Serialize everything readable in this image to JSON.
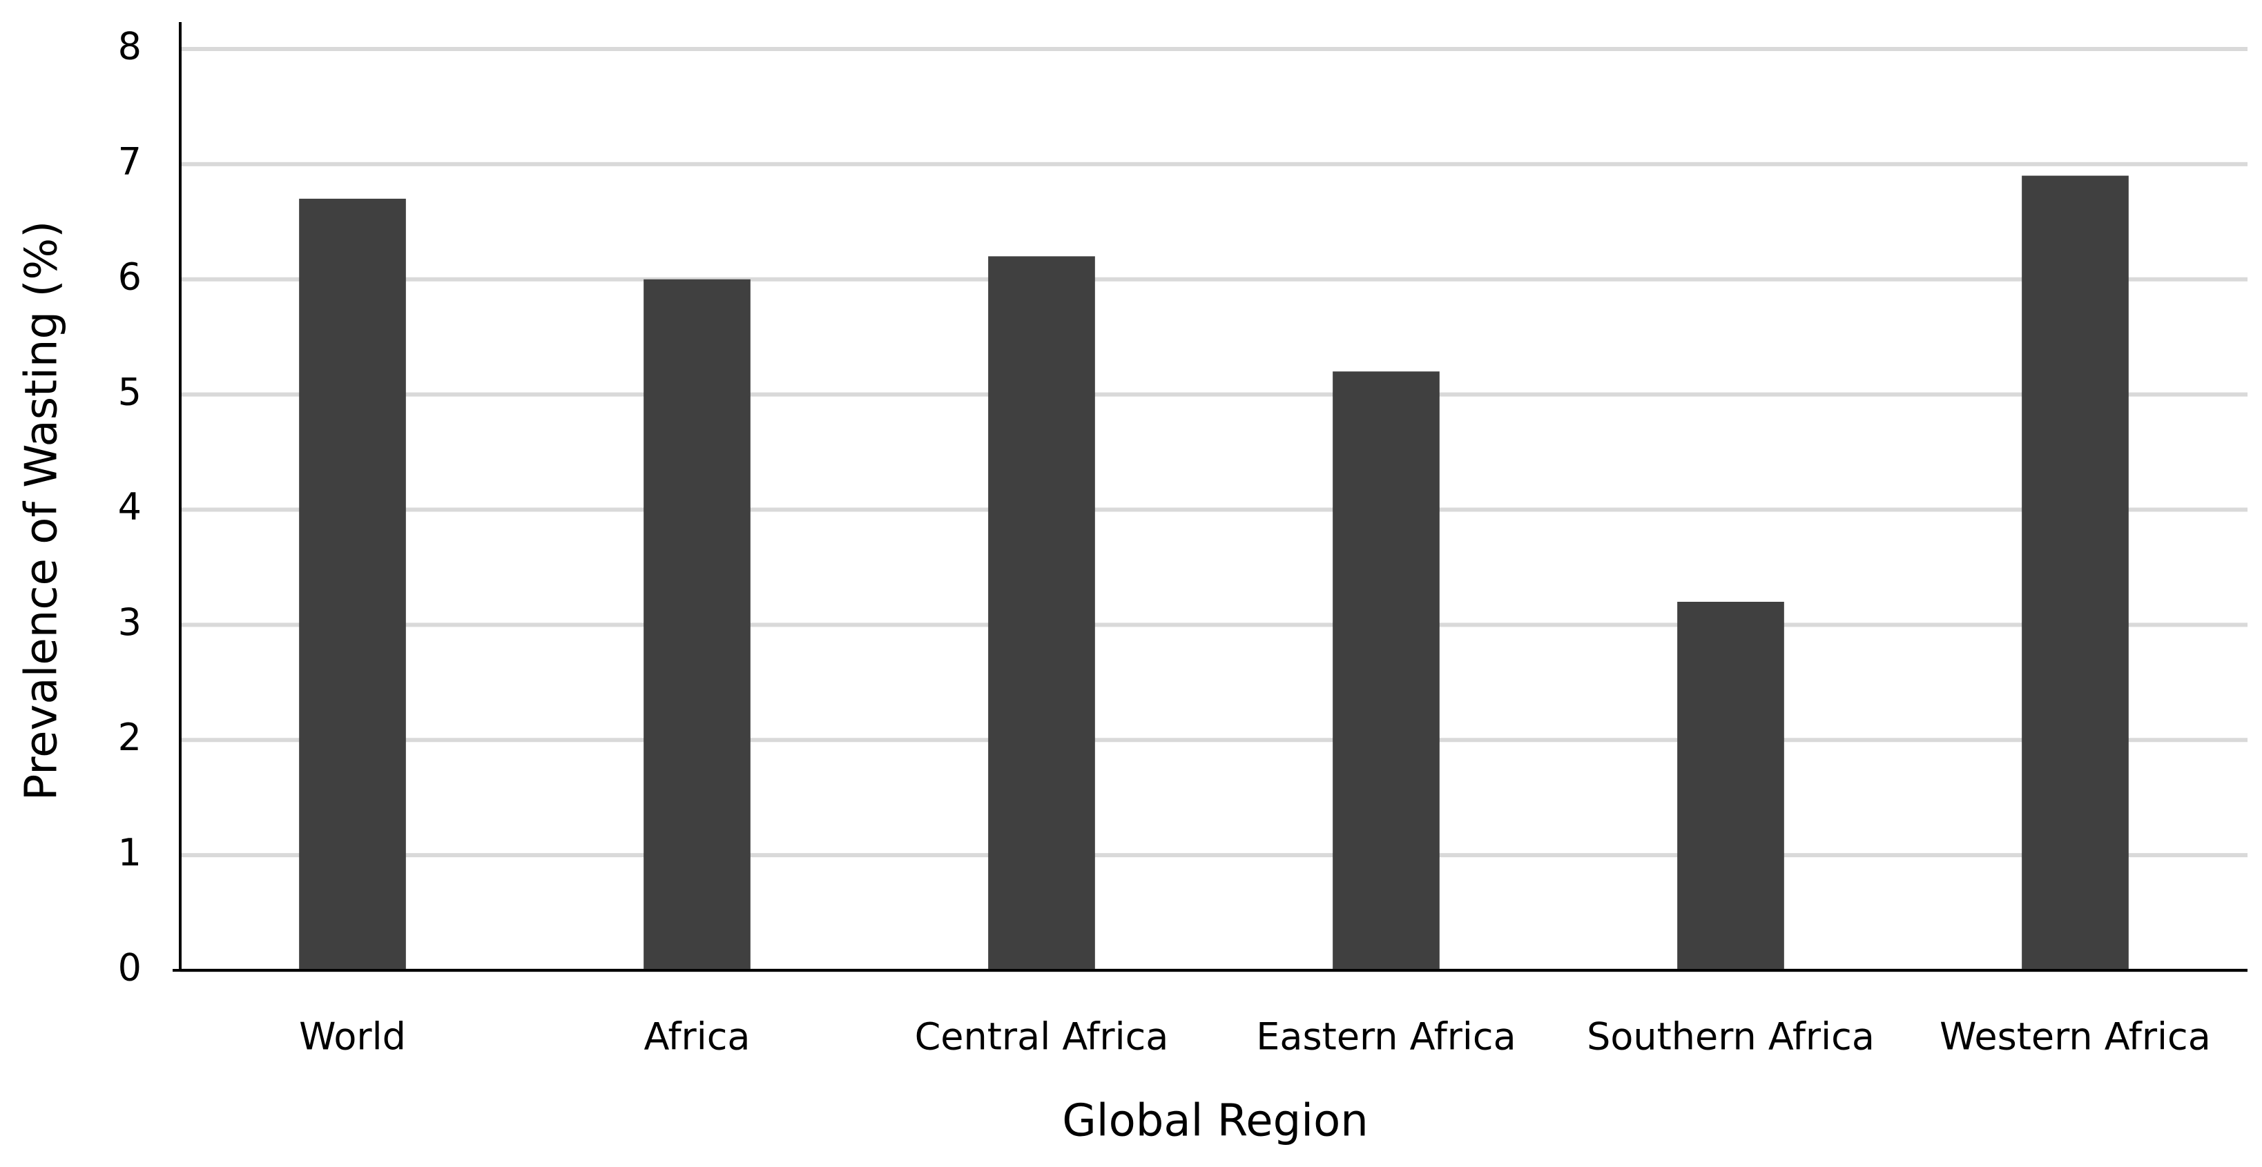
{
  "chart_data": {
    "type": "bar",
    "x_label": "Global Region",
    "y_label": "Prevalence of Wasting (%)",
    "categories": [
      "World",
      "Africa",
      "Central Africa",
      "Eastern Africa",
      "Southern Africa",
      "Western Africa"
    ],
    "values": [
      6.7,
      6.0,
      6.2,
      5.2,
      3.2,
      6.9
    ],
    "color": "#404040",
    "ylim": [
      0,
      8
    ],
    "yticks": [
      0,
      1,
      2,
      3,
      4,
      5,
      6,
      7,
      8
    ],
    "grid": true
  }
}
